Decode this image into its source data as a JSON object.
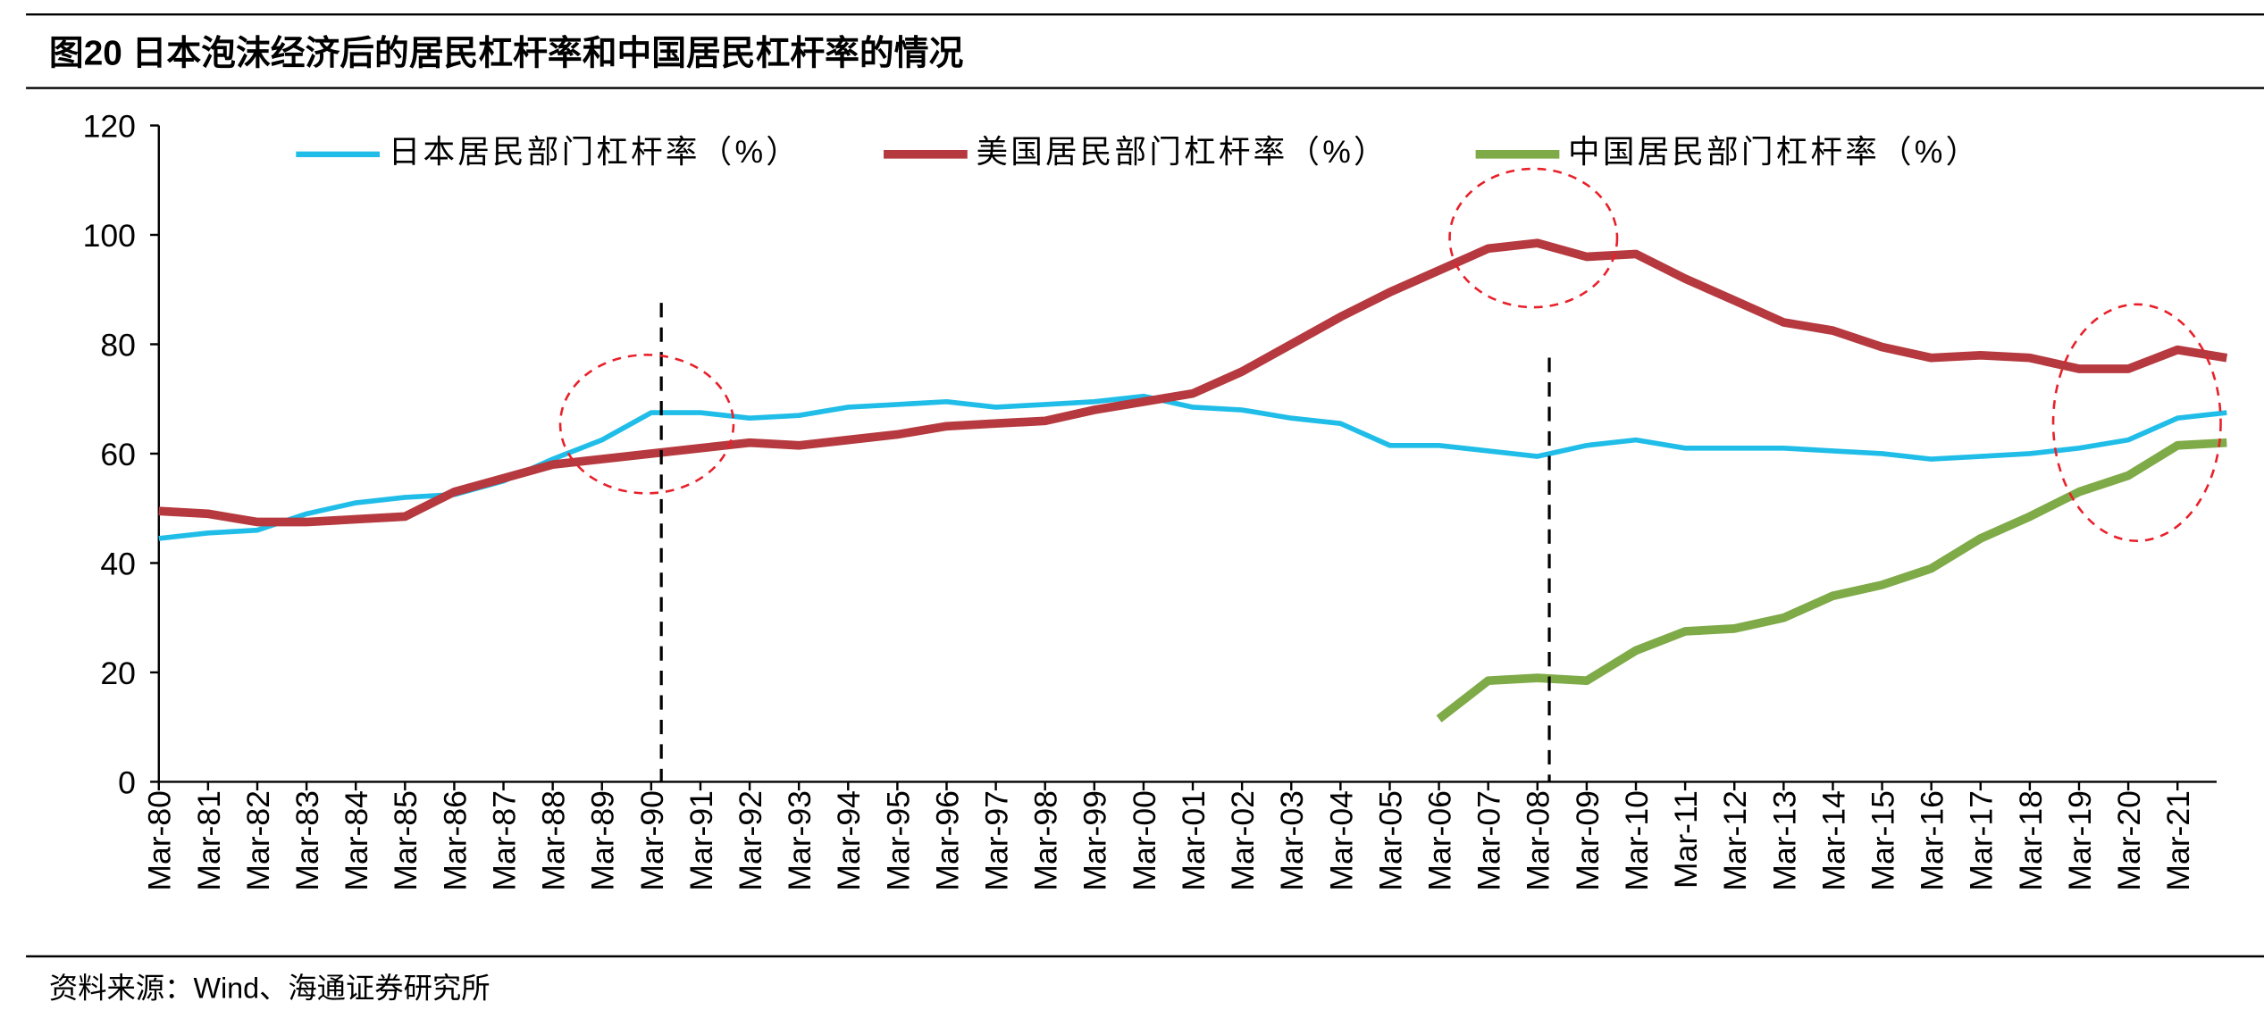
{
  "chart_data": {
    "type": "line",
    "title": "图20 日本泡沫经济后的居民杠杆率和中国居民杠杆率的情况",
    "source": "资料来源：Wind、海通证券研究所",
    "categories": [
      "Mar-80",
      "Mar-81",
      "Mar-82",
      "Mar-83",
      "Mar-84",
      "Mar-85",
      "Mar-86",
      "Mar-87",
      "Mar-88",
      "Mar-89",
      "Mar-90",
      "Mar-91",
      "Mar-92",
      "Mar-93",
      "Mar-94",
      "Mar-95",
      "Mar-96",
      "Mar-97",
      "Mar-98",
      "Mar-99",
      "Mar-00",
      "Mar-01",
      "Mar-02",
      "Mar-03",
      "Mar-04",
      "Mar-05",
      "Mar-06",
      "Mar-07",
      "Mar-08",
      "Mar-09",
      "Mar-10",
      "Mar-11",
      "Mar-12",
      "Mar-13",
      "Mar-14",
      "Mar-15",
      "Mar-16",
      "Mar-17",
      "Mar-18",
      "Mar-19",
      "Mar-20",
      "Mar-21",
      null
    ],
    "series": [
      {
        "name": "日本居民部门杠杆率（%）",
        "color": "#1fbde8",
        "values": [
          44.5,
          45.5,
          46,
          49,
          51,
          52,
          52.5,
          55,
          59,
          62.5,
          67.5,
          67.5,
          66.5,
          67,
          68.5,
          69,
          69.5,
          68.5,
          69,
          69.5,
          70.5,
          68.5,
          68,
          66.5,
          65.5,
          61.5,
          61.5,
          60.5,
          59.5,
          61.5,
          62.5,
          61,
          61,
          61,
          60.5,
          60,
          59,
          59.5,
          60,
          61,
          62.5,
          66.5,
          67.5
        ]
      },
      {
        "name": "美国居民部门杠杆率（%）",
        "color": "#b5393e",
        "values": [
          49.5,
          49,
          47.5,
          47.5,
          48,
          48.5,
          53,
          55.5,
          58,
          59,
          60,
          61,
          62,
          61.5,
          62.5,
          63.5,
          65,
          65.5,
          66,
          68,
          69.5,
          71,
          75,
          80,
          85,
          89.5,
          93.5,
          97.5,
          98.5,
          96,
          96.5,
          92,
          88,
          84,
          82.5,
          79.5,
          77.5,
          78,
          77.5,
          75.5,
          75.5,
          79,
          77.5
        ]
      },
      {
        "name": "中国居民部门杠杆率（%）",
        "color": "#7faa48",
        "values": [
          null,
          null,
          null,
          null,
          null,
          null,
          null,
          null,
          null,
          null,
          null,
          null,
          null,
          null,
          null,
          null,
          null,
          null,
          null,
          null,
          null,
          null,
          null,
          null,
          null,
          null,
          11.5,
          18.5,
          19,
          18.5,
          24,
          27.5,
          28,
          30,
          34,
          36,
          39,
          44.5,
          48.5,
          53,
          56,
          61.5,
          62
        ]
      }
    ],
    "ylim": [
      0,
      120
    ],
    "yticks": [
      0,
      20,
      40,
      60,
      80,
      100,
      120
    ]
  }
}
